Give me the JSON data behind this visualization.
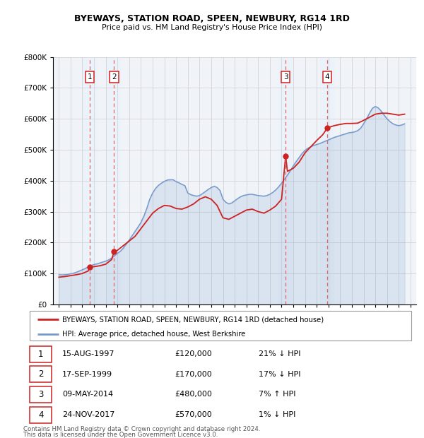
{
  "title": "BYEWAYS, STATION ROAD, SPEEN, NEWBURY, RG14 1RD",
  "subtitle": "Price paid vs. HM Land Registry's House Price Index (HPI)",
  "legend_line1": "BYEWAYS, STATION ROAD, SPEEN, NEWBURY, RG14 1RD (detached house)",
  "legend_line2": "HPI: Average price, detached house, West Berkshire",
  "footer1": "Contains HM Land Registry data © Crown copyright and database right 2024.",
  "footer2": "This data is licensed under the Open Government Licence v3.0.",
  "transactions": [
    {
      "num": 1,
      "date": "15-AUG-1997",
      "price": 120000,
      "pct": "21%",
      "dir": "↓",
      "year": 1997.62
    },
    {
      "num": 2,
      "date": "17-SEP-1999",
      "price": 170000,
      "pct": "17%",
      "dir": "↓",
      "year": 1999.71
    },
    {
      "num": 3,
      "date": "09-MAY-2014",
      "price": 480000,
      "pct": "7%",
      "dir": "↑",
      "year": 2014.35
    },
    {
      "num": 4,
      "date": "24-NOV-2017",
      "price": 570000,
      "pct": "1%",
      "dir": "↓",
      "year": 2017.9
    }
  ],
  "hpi_color": "#7799cc",
  "price_color": "#cc2222",
  "dot_color": "#cc2222",
  "vline_color": "#dd6666",
  "shade_color": "#ddeeff",
  "bg_color": "#f0f4f8",
  "ylim": [
    0,
    800000
  ],
  "yticks": [
    0,
    100000,
    200000,
    300000,
    400000,
    500000,
    600000,
    700000,
    800000
  ],
  "xlim": [
    1994.5,
    2025.5
  ],
  "xticks": [
    1995,
    1996,
    1997,
    1998,
    1999,
    2000,
    2001,
    2002,
    2003,
    2004,
    2005,
    2006,
    2007,
    2008,
    2009,
    2010,
    2011,
    2012,
    2013,
    2014,
    2015,
    2016,
    2017,
    2018,
    2019,
    2020,
    2021,
    2022,
    2023,
    2024,
    2025
  ],
  "hpi_years": [
    1995.0,
    1995.25,
    1995.5,
    1995.75,
    1996.0,
    1996.25,
    1996.5,
    1996.75,
    1997.0,
    1997.25,
    1997.5,
    1997.75,
    1998.0,
    1998.25,
    1998.5,
    1998.75,
    1999.0,
    1999.25,
    1999.5,
    1999.75,
    2000.0,
    2000.25,
    2000.5,
    2000.75,
    2001.0,
    2001.25,
    2001.5,
    2001.75,
    2002.0,
    2002.25,
    2002.5,
    2002.75,
    2003.0,
    2003.25,
    2003.5,
    2003.75,
    2004.0,
    2004.25,
    2004.5,
    2004.75,
    2005.0,
    2005.25,
    2005.5,
    2005.75,
    2006.0,
    2006.25,
    2006.5,
    2006.75,
    2007.0,
    2007.25,
    2007.5,
    2007.75,
    2008.0,
    2008.25,
    2008.5,
    2008.75,
    2009.0,
    2009.25,
    2009.5,
    2009.75,
    2010.0,
    2010.25,
    2010.5,
    2010.75,
    2011.0,
    2011.25,
    2011.5,
    2011.75,
    2012.0,
    2012.25,
    2012.5,
    2012.75,
    2013.0,
    2013.25,
    2013.5,
    2013.75,
    2014.0,
    2014.25,
    2014.5,
    2014.75,
    2015.0,
    2015.25,
    2015.5,
    2015.75,
    2016.0,
    2016.25,
    2016.5,
    2016.75,
    2017.0,
    2017.25,
    2017.5,
    2017.75,
    2018.0,
    2018.25,
    2018.5,
    2018.75,
    2019.0,
    2019.25,
    2019.5,
    2019.75,
    2020.0,
    2020.25,
    2020.5,
    2020.75,
    2021.0,
    2021.25,
    2021.5,
    2021.75,
    2022.0,
    2022.25,
    2022.5,
    2022.75,
    2023.0,
    2023.25,
    2023.5,
    2023.75,
    2024.0,
    2024.25,
    2024.5
  ],
  "hpi_values": [
    96000,
    95500,
    96000,
    97000,
    99000,
    101000,
    104000,
    108000,
    112000,
    116000,
    122000,
    126000,
    129000,
    131000,
    134000,
    137000,
    140000,
    144000,
    150000,
    157000,
    165000,
    172000,
    182000,
    195000,
    208000,
    222000,
    236000,
    250000,
    265000,
    285000,
    310000,
    340000,
    360000,
    375000,
    385000,
    392000,
    398000,
    402000,
    403000,
    403000,
    397000,
    393000,
    388000,
    384000,
    360000,
    355000,
    352000,
    350000,
    352000,
    358000,
    365000,
    372000,
    378000,
    382000,
    378000,
    368000,
    340000,
    330000,
    325000,
    328000,
    335000,
    342000,
    348000,
    352000,
    354000,
    356000,
    356000,
    354000,
    352000,
    351000,
    350000,
    352000,
    356000,
    362000,
    370000,
    380000,
    392000,
    405000,
    418000,
    432000,
    448000,
    462000,
    475000,
    488000,
    498000,
    505000,
    510000,
    514000,
    517000,
    520000,
    524000,
    528000,
    532000,
    536000,
    540000,
    543000,
    546000,
    549000,
    552000,
    555000,
    556000,
    558000,
    562000,
    570000,
    584000,
    600000,
    618000,
    634000,
    640000,
    635000,
    625000,
    612000,
    600000,
    591000,
    584000,
    580000,
    578000,
    580000,
    584000
  ],
  "price_years": [
    1995.0,
    1995.5,
    1996.0,
    1996.5,
    1997.0,
    1997.5,
    1997.62,
    1998.0,
    1998.5,
    1999.0,
    1999.5,
    1999.71,
    2000.0,
    2000.5,
    2001.0,
    2001.5,
    2002.0,
    2002.5,
    2003.0,
    2003.5,
    2004.0,
    2004.5,
    2005.0,
    2005.5,
    2006.0,
    2006.5,
    2007.0,
    2007.5,
    2008.0,
    2008.5,
    2009.0,
    2009.5,
    2010.0,
    2010.5,
    2011.0,
    2011.5,
    2012.0,
    2012.5,
    2013.0,
    2013.5,
    2014.0,
    2014.35,
    2014.5,
    2015.0,
    2015.5,
    2016.0,
    2016.5,
    2017.0,
    2017.5,
    2017.9,
    2018.0,
    2018.5,
    2019.0,
    2019.5,
    2020.0,
    2020.5,
    2021.0,
    2021.5,
    2022.0,
    2022.5,
    2023.0,
    2023.5,
    2024.0,
    2024.5
  ],
  "price_values": [
    88000,
    90000,
    93000,
    96000,
    100000,
    108000,
    120000,
    122000,
    125000,
    130000,
    145000,
    170000,
    175000,
    190000,
    205000,
    220000,
    245000,
    270000,
    295000,
    310000,
    320000,
    318000,
    310000,
    308000,
    315000,
    325000,
    340000,
    348000,
    340000,
    320000,
    280000,
    275000,
    285000,
    295000,
    305000,
    308000,
    300000,
    295000,
    305000,
    318000,
    340000,
    480000,
    430000,
    440000,
    460000,
    490000,
    510000,
    530000,
    548000,
    570000,
    572000,
    578000,
    582000,
    585000,
    585000,
    586000,
    595000,
    605000,
    615000,
    618000,
    618000,
    615000,
    612000,
    615000
  ]
}
